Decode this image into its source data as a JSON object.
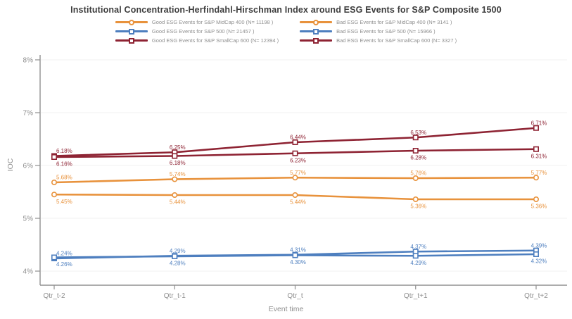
{
  "title": "Institutional Concentration-Herfindahl-Hirschman Index around ESG Events for S&P Composite 1500",
  "colors": {
    "midcap_orange": "#E8923C",
    "sp500_blue": "#4E7FBF",
    "smallcap_maroon": "#8E2333",
    "axis_gray": "#909090",
    "grid_gray": "#f0f0f0",
    "label_gray": "#8f8f8f"
  },
  "legend": {
    "items": [
      {
        "label": "Good ESG Events for S&P MidCap 400 (N= 11198 )",
        "color": "#E8923C",
        "marker": "circle"
      },
      {
        "label": "Bad ESG Events for S&P MidCap 400 (N= 3141 )",
        "color": "#E8923C",
        "marker": "circle"
      },
      {
        "label": "Good ESG Events for S&P 500 (N= 21457 )",
        "color": "#4E7FBF",
        "marker": "square"
      },
      {
        "label": "Bad ESG Events for S&P 500 (N= 15966 )",
        "color": "#4E7FBF",
        "marker": "square"
      },
      {
        "label": "Good ESG Events for S&P SmallCap 600 (N= 12394 )",
        "color": "#8E2333",
        "marker": "square"
      },
      {
        "label": "Bad ESG Events for S&P SmallCap 600 (N= 3327 )",
        "color": "#8E2333",
        "marker": "square"
      }
    ]
  },
  "chart_data": {
    "type": "line",
    "title": "Institutional Concentration-Herfindahl-Hirschman Index around ESG Events for S&P Composite 1500",
    "xlabel": "Event time",
    "ylabel": "IOC",
    "x_categories": [
      "Qtr_t-2",
      "Qtr_t-1",
      "Qtr_t",
      "Qtr_t+1",
      "Qtr_t+2"
    ],
    "y_ticks": [
      "4%",
      "5%",
      "6%",
      "7%",
      "8%"
    ],
    "ylim": [
      4,
      8
    ],
    "grid": "horizontal-light",
    "legend_position": "top",
    "series": [
      {
        "name": "Good ESG Events for S&P SmallCap 600 (N= 12394 )",
        "color": "#8E2333",
        "marker": "square",
        "label_position": "above",
        "values": [
          6.18,
          6.25,
          6.44,
          6.53,
          6.71
        ],
        "labels": [
          "6.18%",
          "6.25%",
          "6.44%",
          "6.53%",
          "6.71%"
        ]
      },
      {
        "name": "Bad ESG Events for S&P SmallCap 600 (N= 3327 )",
        "color": "#8E2333",
        "marker": "square",
        "label_position": "below",
        "values": [
          6.16,
          6.18,
          6.23,
          6.28,
          6.31
        ],
        "labels": [
          "6.16%",
          "6.18%",
          "6.23%",
          "6.28%",
          "6.31%"
        ]
      },
      {
        "name": "Good ESG Events for S&P MidCap 400 (N= 11198 )",
        "color": "#E8923C",
        "marker": "circle",
        "label_position": "above",
        "values": [
          5.68,
          5.74,
          5.77,
          5.76,
          5.77
        ],
        "labels": [
          "5.68%",
          "5.74%",
          "5.77%",
          "5.76%",
          "5.77%"
        ]
      },
      {
        "name": "Bad ESG Events for S&P MidCap 400 (N= 3141 )",
        "color": "#E8923C",
        "marker": "circle",
        "label_position": "below",
        "values": [
          5.45,
          5.44,
          5.44,
          5.36,
          5.36
        ],
        "labels": [
          "5.45%",
          "5.44%",
          "5.44%",
          "5.36%",
          "5.36%"
        ]
      },
      {
        "name": "Good ESG Events for S&P 500 (N= 21457 )",
        "color": "#4E7FBF",
        "marker": "square",
        "label_position": "above",
        "values": [
          4.24,
          4.29,
          4.31,
          4.37,
          4.39
        ],
        "labels": [
          "4.24%",
          "4.29%",
          "4.31%",
          "4.37%",
          "4.39%"
        ]
      },
      {
        "name": "Bad ESG Events for S&P 500 (N= 15966 )",
        "color": "#4E7FBF",
        "marker": "square",
        "label_position": "below",
        "values": [
          4.26,
          4.28,
          4.3,
          4.29,
          4.32
        ],
        "labels": [
          "4.26%",
          "4.28%",
          "4.30%",
          "4.29%",
          "4.32%"
        ]
      }
    ]
  }
}
